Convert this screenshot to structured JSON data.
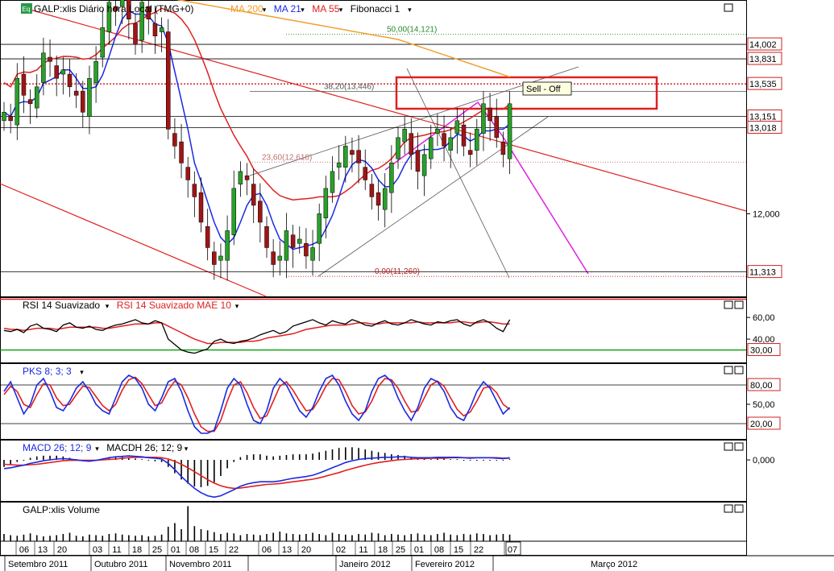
{
  "main_panel": {
    "symbol_badge": "Eq",
    "title": "GALP:xlis Diário hora Local (TMG+0)",
    "legend": [
      {
        "label": "MA 200",
        "color": "#f0a030",
        "arrow": "▾"
      },
      {
        "label": "MA 21",
        "color": "#1a2ae0",
        "arrow": "▾"
      },
      {
        "label": "MA 55",
        "color": "#e02020",
        "arrow": "▾"
      },
      {
        "label": "Fibonacci 1",
        "color": "#000000",
        "arrow": "▾"
      }
    ],
    "fib_labels": [
      "50,00(14,121)",
      "38,20(13,446)",
      "23,60(12,610)",
      "0,00(11,260)"
    ],
    "annotation": "Sell - Off",
    "price_tags": [
      "14,002",
      "13,831",
      "13,535",
      "13,151",
      "13,018",
      "11,313"
    ],
    "axis_labels": [
      "12,000"
    ],
    "chart_data": {
      "type": "candlestick",
      "ylim": [
        11.1,
        14.45
      ],
      "ma_colors": {
        "ma200": "#f0a030",
        "ma21": "#1a2ae0",
        "ma55": "#e02020"
      },
      "close": [
        13.2,
        13.1,
        13.6,
        13.4,
        13.3,
        13.5,
        13.9,
        13.8,
        13.6,
        13.7,
        13.5,
        13.4,
        13.2,
        13.6,
        13.8,
        14.2,
        14.5,
        14.4,
        14.6,
        14.3,
        14.0,
        14.5,
        14.3,
        14.1,
        14.2,
        13.0,
        12.8,
        12.6,
        12.4,
        12.2,
        11.9,
        11.6,
        11.4,
        11.5,
        11.8,
        12.3,
        12.5,
        12.4,
        12.1,
        11.9,
        11.6,
        11.4,
        11.5,
        11.8,
        11.6,
        11.7,
        11.5,
        11.6,
        12.0,
        12.3,
        12.5,
        12.6,
        12.8,
        12.7,
        12.6,
        12.4,
        12.2,
        12.1,
        12.3,
        12.6,
        12.9,
        13.0,
        12.7,
        12.5,
        12.7,
        12.9,
        13.0,
        12.8,
        12.9,
        13.1,
        12.8,
        12.7,
        13.0,
        13.3,
        13.1,
        12.9,
        12.7,
        13.3
      ],
      "fibonacci": [
        {
          "label": "50,00(14,121)",
          "value": 14.121
        },
        {
          "label": "38,20(13,446)",
          "value": 13.446
        },
        {
          "label": "23,60(12,610)",
          "value": 12.61
        },
        {
          "label": "0,00(11,260)",
          "value": 11.26
        }
      ],
      "horizontal_lines": [
        14.002,
        13.831,
        13.535,
        13.151,
        13.018,
        11.313
      ]
    }
  },
  "rsi_panel": {
    "legend": [
      {
        "label": "RSI 14 Suavizado",
        "color": "#000000",
        "arrow": "▾"
      },
      {
        "label": "RSI 14 Suavizado MAE 10",
        "color": "#e02020",
        "arrow": "▾"
      }
    ],
    "axis_labels": [
      "60,00",
      "40,00"
    ],
    "level_tag": "30,00",
    "chart_data": {
      "type": "line",
      "ylim": [
        20,
        75
      ],
      "level": 30,
      "series": [
        {
          "values": [
            48,
            47,
            49,
            46,
            52,
            54,
            50,
            49,
            47,
            53,
            55,
            51,
            50,
            52,
            49,
            48,
            51,
            53,
            54,
            56,
            58,
            55,
            54,
            57,
            55,
            40,
            35,
            30,
            28,
            27,
            29,
            31,
            38,
            40,
            37,
            36,
            38,
            39,
            41,
            44,
            46,
            48,
            45,
            47,
            52,
            54,
            56,
            58,
            55,
            53,
            57,
            55,
            54,
            58,
            56,
            53,
            52,
            55,
            57,
            54,
            53,
            55,
            58,
            56,
            54,
            53,
            56,
            55,
            57,
            58,
            54,
            52,
            56,
            58,
            55,
            50,
            47,
            58
          ]
        },
        {
          "values": [
            50,
            49,
            49,
            48,
            49,
            50,
            50,
            50,
            49,
            50,
            51,
            51,
            51,
            51,
            51,
            50,
            50,
            51,
            52,
            53,
            54,
            54,
            54,
            55,
            55,
            52,
            49,
            46,
            43,
            40,
            38,
            36,
            36,
            37,
            37,
            37,
            37,
            38,
            38,
            39,
            41,
            42,
            43,
            44,
            45,
            47,
            49,
            50,
            51,
            52,
            53,
            53,
            53,
            54,
            55,
            55,
            54,
            54,
            55,
            55,
            55,
            55,
            55,
            56,
            55,
            55,
            55,
            55,
            55,
            56,
            56,
            55,
            55,
            56,
            56,
            55,
            54,
            54
          ]
        }
      ]
    }
  },
  "pks_panel": {
    "legend": [
      {
        "label": "PKS 8; 3; 3",
        "color": "#1a2ae0",
        "arrow": "▾"
      }
    ],
    "axis_labels": [
      "50,00"
    ],
    "level_tags": [
      "80,00",
      "20,00"
    ],
    "chart_data": {
      "type": "line",
      "ylim": [
        0,
        100
      ],
      "levels": [
        80,
        20
      ],
      "series": [
        {
          "values": [
            70,
            85,
            60,
            35,
            50,
            80,
            90,
            70,
            45,
            40,
            55,
            75,
            85,
            70,
            50,
            40,
            35,
            60,
            85,
            95,
            90,
            75,
            50,
            40,
            60,
            85,
            90,
            70,
            40,
            15,
            5,
            5,
            10,
            40,
            75,
            90,
            80,
            50,
            25,
            20,
            40,
            75,
            90,
            80,
            60,
            40,
            30,
            45,
            70,
            90,
            95,
            80,
            55,
            35,
            25,
            40,
            70,
            90,
            95,
            85,
            60,
            40,
            25,
            45,
            75,
            90,
            85,
            70,
            45,
            30,
            25,
            45,
            70,
            85,
            75,
            55,
            35,
            45
          ]
        },
        {
          "values": [
            65,
            78,
            70,
            50,
            45,
            65,
            82,
            80,
            60,
            48,
            50,
            65,
            78,
            76,
            62,
            48,
            40,
            50,
            72,
            88,
            92,
            82,
            65,
            48,
            52,
            72,
            86,
            80,
            60,
            35,
            15,
            8,
            8,
            25,
            55,
            80,
            85,
            68,
            45,
            28,
            32,
            55,
            78,
            85,
            72,
            55,
            40,
            42,
            58,
            78,
            90,
            88,
            70,
            48,
            35,
            38,
            55,
            78,
            90,
            88,
            75,
            55,
            38,
            40,
            60,
            80,
            86,
            78,
            60,
            42,
            32,
            38,
            55,
            75,
            78,
            68,
            50,
            42
          ]
        }
      ]
    }
  },
  "macd_panel": {
    "legend": [
      {
        "label": "MACD 26; 12; 9",
        "color": "#1a2ae0",
        "arrow": "▾"
      },
      {
        "label": "MACDH 26; 12; 9",
        "color": "#000000",
        "arrow": "▾"
      }
    ],
    "axis_labels": [
      "0,000"
    ],
    "chart_data": {
      "type": "line",
      "ylim": [
        -0.9,
        0.35
      ],
      "zero": 0,
      "series": [
        {
          "values": [
            -0.2,
            -0.18,
            -0.15,
            -0.12,
            -0.08,
            -0.05,
            -0.02,
            0.0,
            0.02,
            0.03,
            0.02,
            0.0,
            -0.02,
            -0.03,
            -0.01,
            0.02,
            0.05,
            0.07,
            0.08,
            0.09,
            0.08,
            0.07,
            0.05,
            0.04,
            0.02,
            -0.08,
            -0.22,
            -0.38,
            -0.52,
            -0.65,
            -0.75,
            -0.82,
            -0.85,
            -0.82,
            -0.75,
            -0.68,
            -0.6,
            -0.55,
            -0.52,
            -0.5,
            -0.5,
            -0.5,
            -0.48,
            -0.45,
            -0.42,
            -0.4,
            -0.38,
            -0.35,
            -0.3,
            -0.24,
            -0.18,
            -0.12,
            -0.06,
            -0.02,
            0.01,
            0.03,
            0.04,
            0.05,
            0.06,
            0.06,
            0.07,
            0.07,
            0.06,
            0.05,
            0.05,
            0.05,
            0.06,
            0.06,
            0.06,
            0.06,
            0.05,
            0.04,
            0.05,
            0.05,
            0.05,
            0.04,
            0.03,
            0.05
          ]
        },
        {
          "values": [
            -0.1,
            -0.11,
            -0.12,
            -0.12,
            -0.11,
            -0.1,
            -0.08,
            -0.06,
            -0.04,
            -0.02,
            -0.01,
            -0.01,
            -0.01,
            -0.01,
            -0.01,
            0.0,
            0.01,
            0.02,
            0.04,
            0.05,
            0.06,
            0.06,
            0.06,
            0.06,
            0.05,
            0.02,
            -0.03,
            -0.1,
            -0.18,
            -0.27,
            -0.36,
            -0.45,
            -0.53,
            -0.59,
            -0.63,
            -0.65,
            -0.64,
            -0.62,
            -0.6,
            -0.58,
            -0.56,
            -0.55,
            -0.54,
            -0.52,
            -0.5,
            -0.48,
            -0.46,
            -0.44,
            -0.41,
            -0.37,
            -0.33,
            -0.29,
            -0.24,
            -0.2,
            -0.16,
            -0.12,
            -0.09,
            -0.06,
            -0.04,
            -0.02,
            0.0,
            0.01,
            0.02,
            0.03,
            0.03,
            0.04,
            0.04,
            0.04,
            0.05,
            0.05,
            0.05,
            0.05,
            0.05,
            0.05,
            0.05,
            0.05,
            0.04,
            0.04
          ]
        }
      ]
    }
  },
  "volume_panel": {
    "title": "GALP:xlis Volume",
    "chart_data": {
      "type": "bar",
      "values": [
        12,
        10,
        9,
        11,
        13,
        10,
        8,
        9,
        10,
        12,
        14,
        9,
        8,
        11,
        10,
        9,
        12,
        13,
        11,
        10,
        9,
        10,
        8,
        9,
        11,
        24,
        30,
        20,
        58,
        25,
        20,
        18,
        15,
        12,
        14,
        13,
        10,
        12,
        11,
        10,
        12,
        14,
        16,
        13,
        12,
        11,
        12,
        14,
        12,
        10,
        14,
        12,
        11,
        10,
        12,
        11,
        14,
        13,
        10,
        12,
        11,
        10,
        12,
        13,
        11,
        10,
        12,
        14,
        11,
        10,
        12,
        11,
        13,
        12,
        10,
        11,
        12,
        11
      ]
    }
  },
  "date_axis": {
    "days": [
      "06",
      "13",
      "20",
      "03",
      "11",
      "18",
      "25",
      "01",
      "08",
      "15",
      "22",
      "06",
      "13",
      "20",
      "02",
      "11",
      "18",
      "25",
      "01",
      "08",
      "15",
      "22",
      "07"
    ],
    "months": [
      "Setembro 2011",
      "Outubro 2011",
      "Novembro 2011",
      "Janeiro 2012",
      "Fevereiro 2012",
      "Março 2012"
    ]
  }
}
